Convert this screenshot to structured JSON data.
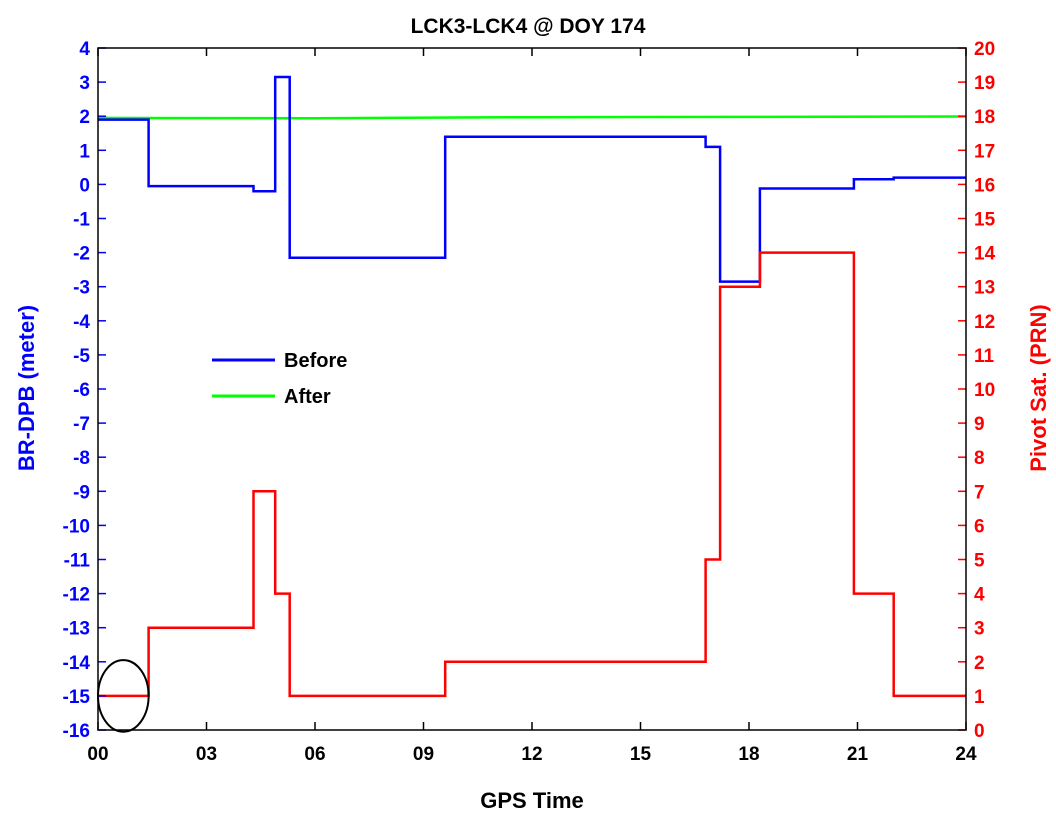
{
  "chart_data": {
    "type": "line",
    "title": "LCK3-LCK4 @ DOY 174",
    "xlabel": "GPS Time",
    "ylabel_left": "BR-DPB (meter)",
    "ylabel_right": "Pivot Sat. (PRN)",
    "xlim": [
      0,
      24
    ],
    "ylim_left": [
      -16,
      4
    ],
    "ylim_right": [
      0,
      20
    ],
    "x_tick_labels": [
      "00",
      "03",
      "06",
      "09",
      "12",
      "15",
      "18",
      "21",
      "24"
    ],
    "x_tick_values": [
      0,
      3,
      6,
      9,
      12,
      15,
      18,
      21,
      24
    ],
    "y_left_ticks": [
      4,
      3,
      2,
      1,
      0,
      -1,
      -2,
      -3,
      -4,
      -5,
      -6,
      -7,
      -8,
      -9,
      -10,
      -11,
      -12,
      -13,
      -14,
      -15,
      -16
    ],
    "y_right_ticks": [
      20,
      19,
      18,
      17,
      16,
      15,
      14,
      13,
      12,
      11,
      10,
      9,
      8,
      7,
      6,
      5,
      4,
      3,
      2,
      1,
      0
    ],
    "legend_position": "center-left",
    "grid": false,
    "series": [
      {
        "name": "Before",
        "axis": "left",
        "color": "#0000ff",
        "x": [
          0,
          1.4,
          1.4,
          4.3,
          4.3,
          4.9,
          4.9,
          5.3,
          5.3,
          9.6,
          9.6,
          16.8,
          16.8,
          17.2,
          17.2,
          18.3,
          18.3,
          20.9,
          20.9,
          22.0,
          22.0,
          24.0
        ],
        "y": [
          1.9,
          1.9,
          -0.05,
          -0.05,
          -0.2,
          -0.2,
          3.15,
          3.15,
          -2.15,
          -2.15,
          1.4,
          1.4,
          1.1,
          1.1,
          -2.85,
          -2.85,
          -0.12,
          -0.12,
          0.15,
          0.15,
          0.2,
          0.2
        ]
      },
      {
        "name": "After",
        "axis": "left",
        "color": "#00ff00",
        "x": [
          0,
          6,
          12,
          18,
          24
        ],
        "y": [
          1.95,
          1.94,
          1.97,
          1.98,
          1.99
        ]
      },
      {
        "name": "",
        "axis": "right",
        "color": "#ff0000",
        "x": [
          0,
          1.4,
          1.4,
          4.3,
          4.3,
          4.9,
          4.9,
          5.3,
          5.3,
          9.6,
          9.6,
          16.8,
          16.8,
          17.2,
          17.2,
          18.3,
          18.3,
          20.9,
          20.9,
          22.0,
          22.0,
          24.0
        ],
        "y": [
          1,
          1,
          3,
          3,
          7,
          7,
          4,
          4,
          1,
          1,
          2,
          2,
          5,
          5,
          13,
          13,
          14,
          14,
          4,
          4,
          1,
          1
        ]
      }
    ],
    "annotation": {
      "type": "ellipse",
      "x": 0.7,
      "y_right": 1,
      "rx_hours": 0.7,
      "ry_units": 1.05,
      "color": "#000000"
    },
    "colors": {
      "left_axis": "#0000ff",
      "right_axis": "#ff0000",
      "axes": "#000000"
    }
  }
}
